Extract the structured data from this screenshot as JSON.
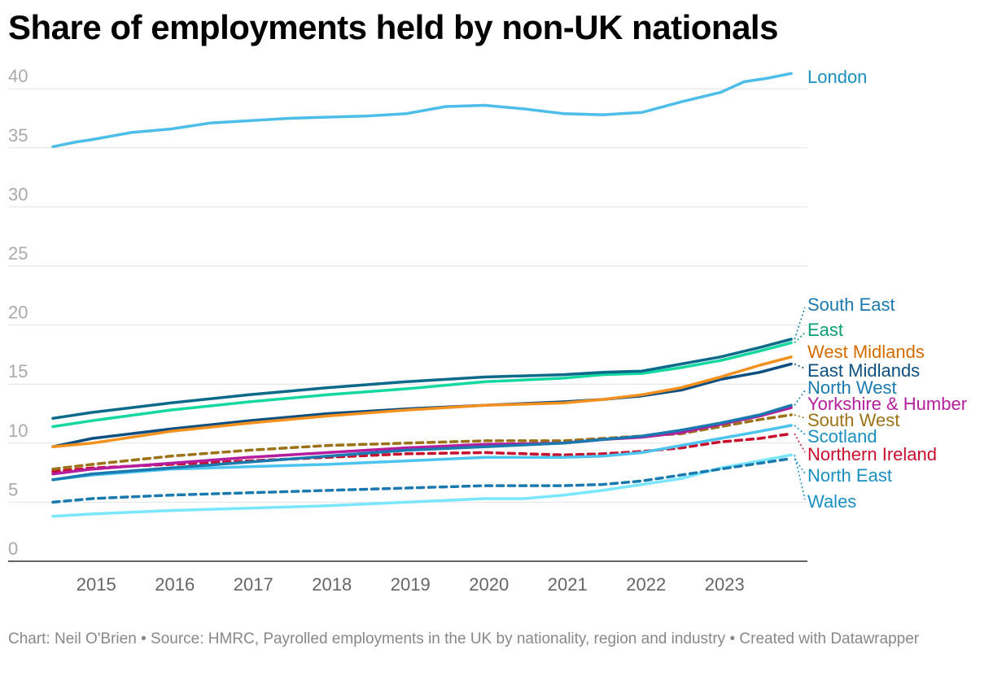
{
  "title": "Share of employments held by non-UK nationals",
  "footer": {
    "credit": "Chart: Neil O'Brien",
    "source": "Source: HMRC, Payrolled employments in the UK by nationality, region and industry",
    "created": "Created with Datawrapper",
    "separator": " • "
  },
  "chart_data": {
    "type": "line",
    "title": "Share of employments held by non-UK nationals",
    "xlabel": "",
    "ylabel": "",
    "xlim": [
      2014.5,
      2023.92
    ],
    "ylim": [
      0,
      42
    ],
    "yticks": [
      0,
      5,
      10,
      15,
      20,
      25,
      30,
      35,
      40
    ],
    "xticks": [
      2015,
      2016,
      2017,
      2018,
      2019,
      2020,
      2021,
      2022,
      2023
    ],
    "grid": true,
    "legend": "direct labels at right",
    "series": [
      {
        "name": "Wales",
        "color": "#7ae6ff",
        "dashed": false,
        "x": [
          2014.5,
          2015,
          2016,
          2017,
          2018,
          2019,
          2020,
          2020.5,
          2021,
          2021.5,
          2022,
          2022.5,
          2023,
          2023.5,
          2023.9
        ],
        "y": [
          3.8,
          4.0,
          4.3,
          4.5,
          4.7,
          5.0,
          5.3,
          5.3,
          5.6,
          6.0,
          6.5,
          7.0,
          7.9,
          8.5,
          9.0
        ]
      },
      {
        "name": "North East",
        "color": "#1a7ab0",
        "dashed": true,
        "x": [
          2014.5,
          2015,
          2016,
          2017,
          2018,
          2019,
          2020,
          2021,
          2021.5,
          2022,
          2022.5,
          2023,
          2023.5,
          2023.9
        ],
        "y": [
          5.0,
          5.3,
          5.6,
          5.8,
          6.0,
          6.2,
          6.4,
          6.4,
          6.5,
          6.8,
          7.3,
          7.8,
          8.3,
          8.7
        ]
      },
      {
        "name": "Northern Ireland",
        "color": "#c8102e",
        "dashed": true,
        "x": [
          2014.5,
          2015,
          2016,
          2017,
          2018,
          2019,
          2020,
          2021,
          2021.5,
          2022,
          2022.5,
          2023,
          2023.5,
          2023.9
        ],
        "y": [
          7.6,
          7.9,
          8.2,
          8.5,
          8.8,
          9.1,
          9.2,
          9.0,
          9.1,
          9.3,
          9.6,
          10.1,
          10.4,
          10.8
        ]
      },
      {
        "name": "Scotland",
        "color": "#4dc3ef",
        "dashed": false,
        "x": [
          2014.5,
          2015,
          2016,
          2017,
          2018,
          2019,
          2020,
          2021,
          2021.5,
          2022,
          2022.5,
          2023,
          2023.5,
          2023.9
        ],
        "y": [
          6.9,
          7.3,
          7.8,
          8.0,
          8.2,
          8.5,
          8.8,
          8.8,
          8.9,
          9.2,
          9.8,
          10.4,
          11.0,
          11.5
        ]
      },
      {
        "name": "South West",
        "color": "#9c7217",
        "dashed": true,
        "x": [
          2014.5,
          2015,
          2016,
          2017,
          2018,
          2019,
          2020,
          2021,
          2021.5,
          2022,
          2022.5,
          2023,
          2023.5,
          2023.9
        ],
        "y": [
          7.8,
          8.2,
          8.9,
          9.4,
          9.8,
          10.0,
          10.2,
          10.2,
          10.4,
          10.6,
          10.8,
          11.4,
          12.0,
          12.4
        ]
      },
      {
        "name": "Yorkshire & Humber",
        "color": "#b31d9e",
        "dashed": false,
        "x": [
          2014.5,
          2015,
          2016,
          2017,
          2018,
          2019,
          2020,
          2021,
          2021.5,
          2022,
          2022.5,
          2023,
          2023.5,
          2023.9
        ],
        "y": [
          7.4,
          7.8,
          8.3,
          8.8,
          9.2,
          9.6,
          9.9,
          10.0,
          10.3,
          10.5,
          10.9,
          11.6,
          12.3,
          13.0
        ]
      },
      {
        "name": "North West",
        "color": "#1a7ab0",
        "dashed": false,
        "x": [
          2014.5,
          2015,
          2016,
          2017,
          2018,
          2019,
          2020,
          2021,
          2021.5,
          2022,
          2022.5,
          2023,
          2023.5,
          2023.9
        ],
        "y": [
          6.9,
          7.4,
          7.9,
          8.4,
          8.9,
          9.4,
          9.7,
          10.0,
          10.3,
          10.6,
          11.1,
          11.7,
          12.4,
          13.2
        ]
      },
      {
        "name": "East Midlands",
        "color": "#0d4f80",
        "dashed": false,
        "x": [
          2014.5,
          2015,
          2016,
          2017,
          2018,
          2019,
          2020,
          2021,
          2021.5,
          2022,
          2022.5,
          2023,
          2023.5,
          2023.9
        ],
        "y": [
          9.7,
          10.4,
          11.2,
          11.9,
          12.5,
          12.9,
          13.2,
          13.5,
          13.7,
          14.0,
          14.5,
          15.4,
          16.0,
          16.7
        ]
      },
      {
        "name": "West Midlands",
        "color": "#f4911e",
        "dashed": false,
        "x": [
          2014.5,
          2015,
          2016,
          2017,
          2018,
          2019,
          2020,
          2021,
          2021.5,
          2022,
          2022.5,
          2023,
          2023.5,
          2023.9
        ],
        "y": [
          9.7,
          10.0,
          11.0,
          11.7,
          12.3,
          12.8,
          13.2,
          13.4,
          13.7,
          14.1,
          14.7,
          15.6,
          16.6,
          17.3
        ]
      },
      {
        "name": "East",
        "color": "#14d8a0",
        "dashed": false,
        "x": [
          2014.5,
          2015,
          2016,
          2017,
          2018,
          2019,
          2020,
          2021,
          2021.5,
          2022,
          2022.5,
          2023,
          2023.5,
          2023.9
        ],
        "y": [
          11.4,
          11.9,
          12.8,
          13.5,
          14.1,
          14.6,
          15.2,
          15.5,
          15.8,
          15.9,
          16.4,
          17.0,
          17.8,
          18.5
        ]
      },
      {
        "name": "South East",
        "color": "#0b6a8a",
        "dashed": false,
        "x": [
          2014.5,
          2015,
          2016,
          2017,
          2018,
          2019,
          2020,
          2021,
          2021.5,
          2022,
          2022.5,
          2023,
          2023.5,
          2023.9
        ],
        "y": [
          12.1,
          12.6,
          13.4,
          14.1,
          14.7,
          15.2,
          15.6,
          15.8,
          16.0,
          16.1,
          16.7,
          17.3,
          18.1,
          18.8
        ]
      },
      {
        "name": "London",
        "color": "#4dbde9",
        "dashed": false,
        "x": [
          2014.5,
          2014.8,
          2015,
          2015.5,
          2016,
          2016.5,
          2017,
          2017.5,
          2018,
          2018.5,
          2019,
          2019.5,
          2020,
          2020.5,
          2021,
          2021.5,
          2022,
          2022.5,
          2023,
          2023.3,
          2023.6,
          2023.9
        ],
        "y": [
          35.1,
          35.5,
          35.7,
          36.3,
          36.6,
          37.1,
          37.3,
          37.5,
          37.6,
          37.7,
          37.9,
          38.5,
          38.6,
          38.3,
          37.9,
          37.8,
          38.0,
          38.9,
          39.7,
          40.6,
          40.9,
          41.3
        ]
      }
    ],
    "labels": [
      {
        "series": "South East",
        "text": "South East",
        "color": "#1a7ab0"
      },
      {
        "series": "East",
        "text": "East",
        "color": "#0aa06e"
      },
      {
        "series": "West Midlands",
        "text": "West Midlands",
        "color": "#d46c00"
      },
      {
        "series": "East Midlands",
        "text": "East Midlands",
        "color": "#0d4f80"
      },
      {
        "series": "North West",
        "text": "North West",
        "color": "#1a7ab0"
      },
      {
        "series": "Yorkshire & Humber",
        "text": "Yorkshire & Humber",
        "color": "#b31d9e"
      },
      {
        "series": "South West",
        "text": "South West",
        "color": "#9c7217"
      },
      {
        "series": "Scotland",
        "text": "Scotland",
        "color": "#1a8fc0"
      },
      {
        "series": "Northern Ireland",
        "text": "Northern Ireland",
        "color": "#c8102e"
      },
      {
        "series": "North East",
        "text": "North East",
        "color": "#1a8fc0"
      },
      {
        "series": "Wales",
        "text": "Wales",
        "color": "#1a8fc0"
      },
      {
        "series": "London",
        "text": "London",
        "color": "#1a8fc0"
      }
    ]
  }
}
